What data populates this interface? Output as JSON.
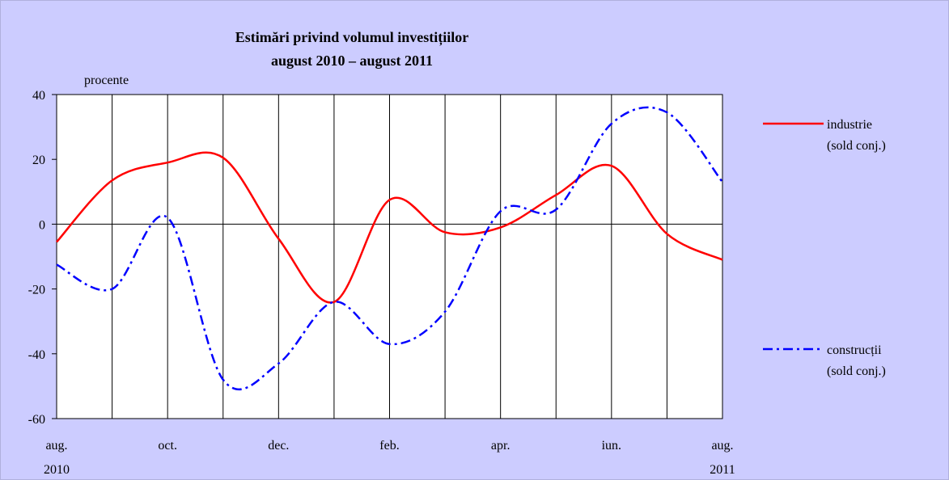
{
  "chart_data": {
    "type": "line",
    "title": "Estimări privind volumul investițiilor",
    "subtitle": "august 2010 – august 2011",
    "y_label": "procente",
    "categories": [
      "aug.\n2010",
      null,
      "oct.",
      null,
      "dec.",
      null,
      "feb.",
      null,
      "apr.",
      null,
      "iun.",
      null,
      "aug.\n2011"
    ],
    "series": [
      {
        "name": "industrie\n(sold conj.)",
        "color": "#ff0000",
        "dash": "solid",
        "values": [
          -5.5,
          13.5,
          19,
          20.5,
          -4.5,
          -24,
          7.5,
          -2.5,
          -1,
          9,
          18,
          -3,
          -11
        ]
      },
      {
        "name": "construcții\n(sold conj.)",
        "color": "#0000ff",
        "dash": "dash-dot",
        "values": [
          -12.5,
          -20,
          2,
          -48,
          -43,
          -24,
          -37,
          -27,
          4,
          4.5,
          31,
          34.5,
          13
        ]
      }
    ],
    "ylim": [
      -60,
      40
    ],
    "yticks": [
      -60,
      -40,
      -20,
      0,
      20,
      40
    ],
    "grid": "vertical",
    "legend": "right"
  }
}
